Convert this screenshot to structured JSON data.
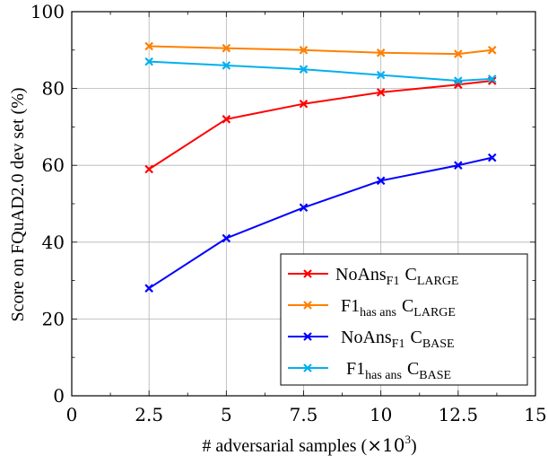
{
  "chart_data": {
    "type": "line",
    "xlabel_main": "# adversarial samples (",
    "xlabel_times": "×10",
    "xlabel_exp": "3",
    "xlabel_close": ")",
    "ylabel": "Score on FQuAD2.0 dev set (%)",
    "xlim": [
      0,
      15
    ],
    "ylim": [
      0,
      100
    ],
    "x_ticks": [
      0,
      2.5,
      5,
      7.5,
      10,
      12.5,
      15
    ],
    "x_tick_labels": [
      "0",
      "2.5",
      "5",
      "7.5",
      "10",
      "12.5",
      "15"
    ],
    "y_ticks": [
      0,
      20,
      40,
      60,
      80,
      100
    ],
    "y_tick_labels": [
      "0",
      "20",
      "40",
      "60",
      "80",
      "100"
    ],
    "grid": true,
    "legend_position": "bottom-right",
    "x": [
      2.5,
      5,
      7.5,
      10,
      12.5,
      13.6
    ],
    "series": [
      {
        "name_main": "NoAns",
        "name_sub": "F1",
        "name_c": "C",
        "name_variant": "LARGE",
        "color": "#ff0000",
        "values": [
          59,
          72,
          76,
          79,
          81,
          82
        ]
      },
      {
        "name_main": "F1",
        "name_sub": "has ans",
        "name_c": "C",
        "name_variant": "LARGE",
        "color": "#ff8000",
        "values": [
          91,
          90.5,
          90,
          89.3,
          89,
          90
        ]
      },
      {
        "name_main": "NoAns",
        "name_sub": "F1",
        "name_c": "C",
        "name_variant": "BASE",
        "color": "#0000ff",
        "values": [
          28,
          41,
          49,
          56,
          60,
          62
        ]
      },
      {
        "name_main": "F1",
        "name_sub": "has ans",
        "name_c": "C",
        "name_variant": "BASE",
        "color": "#00b0f0",
        "values": [
          87,
          86,
          85,
          83.5,
          82,
          82.5
        ]
      }
    ]
  }
}
